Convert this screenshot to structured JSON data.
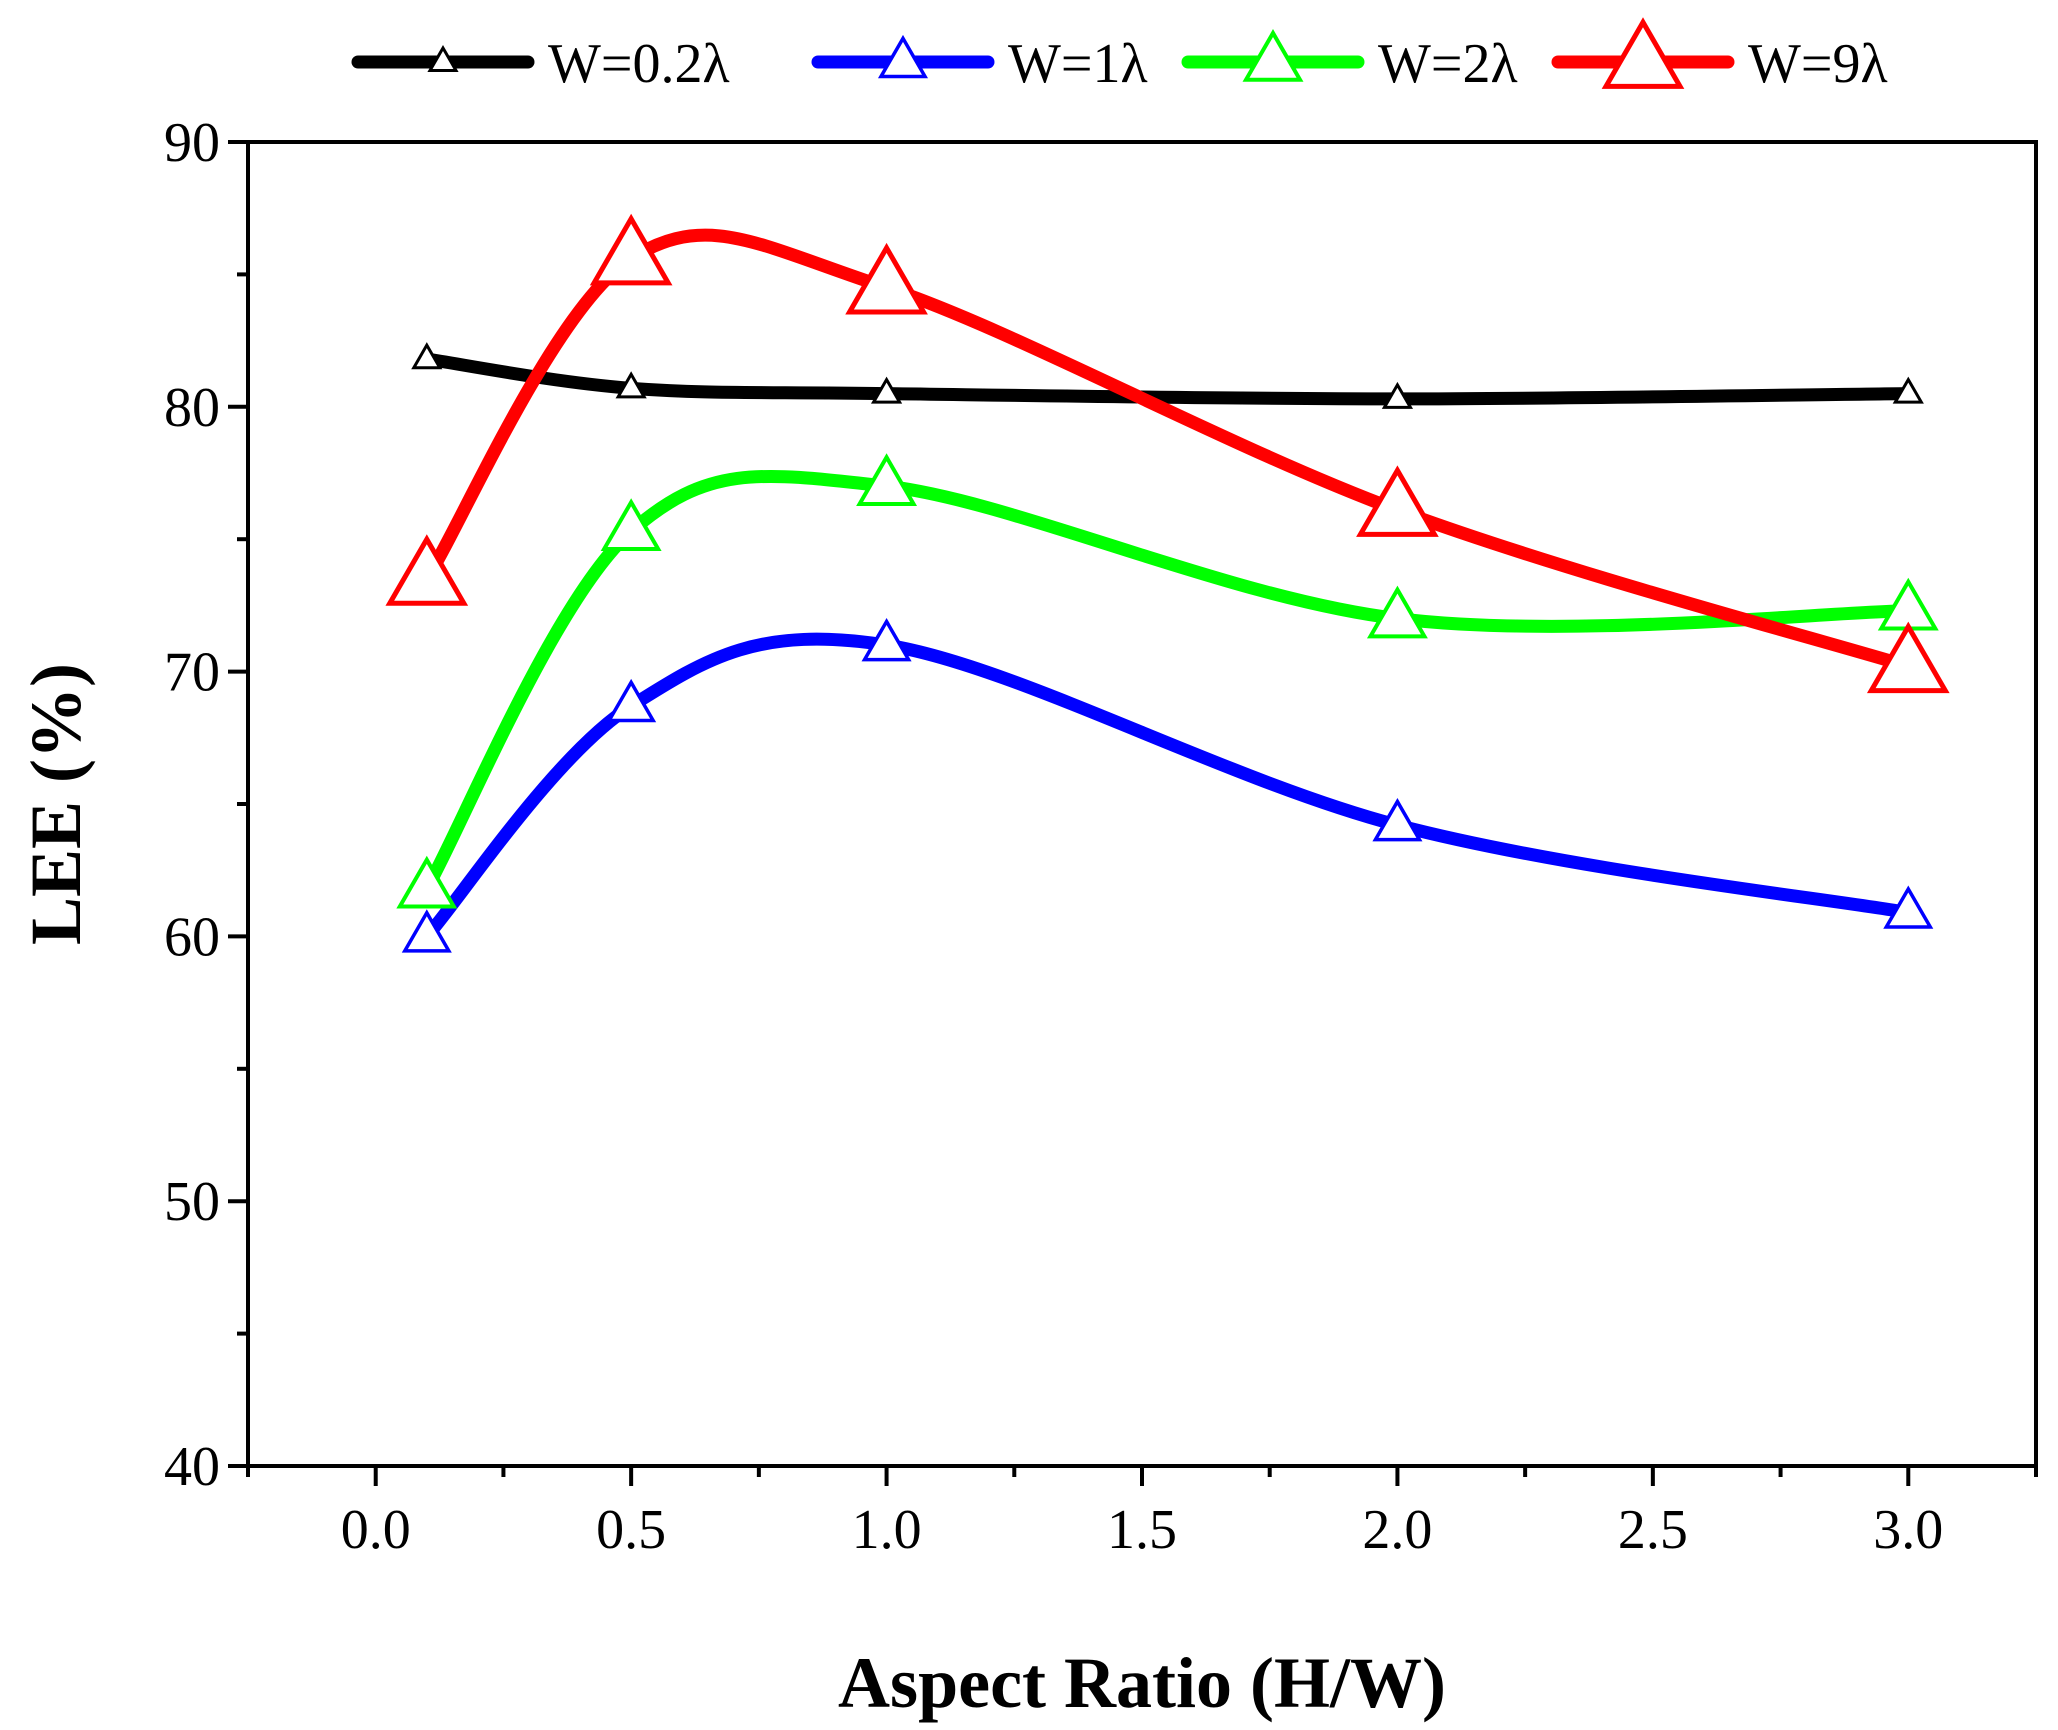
{
  "chart_data": {
    "type": "line",
    "title": "",
    "xlabel": "Aspect Ratio (H/W)",
    "ylabel": "LEE (%)",
    "xlim": [
      -0.25,
      3.25
    ],
    "ylim": [
      40,
      90
    ],
    "x_ticks": [
      "0.0",
      "0.5",
      "1.0",
      "1.5",
      "2.0",
      "2.5",
      "3.0"
    ],
    "y_ticks": [
      "40",
      "50",
      "60",
      "70",
      "80",
      "90"
    ],
    "legend_position": "top",
    "grid": false,
    "x": [
      0.1,
      0.5,
      1.0,
      2.0,
      3.0
    ],
    "series": [
      {
        "name": "W=0.2λ",
        "color": "#000000",
        "marker": "triangle-small",
        "values": [
          81.8,
          80.7,
          80.5,
          80.3,
          80.5
        ]
      },
      {
        "name": "W=1λ",
        "color": "#0000ff",
        "marker": "triangle-medium",
        "values": [
          60.0,
          68.7,
          71.0,
          64.2,
          60.9
        ]
      },
      {
        "name": "W=2λ",
        "color": "#00ff00",
        "marker": "triangle-large",
        "values": [
          61.8,
          75.3,
          77.0,
          72.0,
          72.3
        ]
      },
      {
        "name": "W=9λ",
        "color": "#ff0000",
        "marker": "triangle-xlarge",
        "values": [
          73.5,
          85.6,
          84.5,
          76.1,
          70.2
        ]
      }
    ]
  }
}
